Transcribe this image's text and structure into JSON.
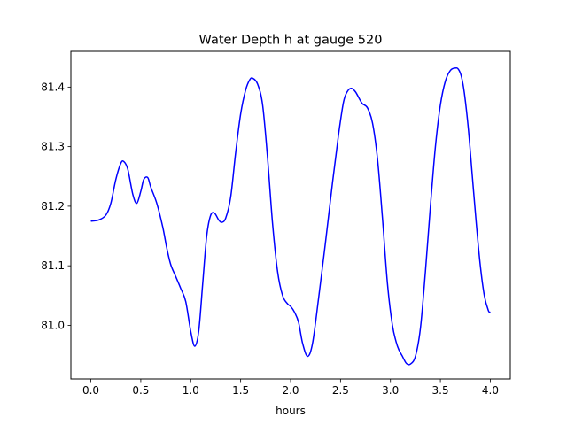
{
  "chart_data": {
    "type": "line",
    "title": "Water Depth h at gauge 520",
    "xlabel": "hours",
    "ylabel": "",
    "xlim": [
      -0.2,
      4.2
    ],
    "ylim": [
      80.91,
      81.46
    ],
    "xticks": [
      0.0,
      0.5,
      1.0,
      1.5,
      2.0,
      2.5,
      3.0,
      3.5,
      4.0
    ],
    "xtick_labels": [
      "0.0",
      "0.5",
      "1.0",
      "1.5",
      "2.0",
      "2.5",
      "3.0",
      "3.5",
      "4.0"
    ],
    "yticks": [
      81.0,
      81.1,
      81.2,
      81.3,
      81.4
    ],
    "ytick_labels": [
      "81.0",
      "81.1",
      "81.2",
      "81.3",
      "81.4"
    ],
    "grid": false,
    "series": [
      {
        "color": "#0000ff",
        "x": [
          0.0,
          0.08,
          0.15,
          0.2,
          0.25,
          0.3,
          0.33,
          0.37,
          0.42,
          0.46,
          0.5,
          0.53,
          0.57,
          0.6,
          0.66,
          0.72,
          0.76,
          0.8,
          0.85,
          0.9,
          0.95,
          1.0,
          1.04,
          1.08,
          1.12,
          1.16,
          1.2,
          1.24,
          1.28,
          1.31,
          1.35,
          1.4,
          1.45,
          1.5,
          1.55,
          1.59,
          1.62,
          1.67,
          1.72,
          1.77,
          1.82,
          1.87,
          1.92,
          1.97,
          2.0,
          2.04,
          2.08,
          2.12,
          2.17,
          2.22,
          2.28,
          2.35,
          2.42,
          2.48,
          2.53,
          2.57,
          2.61,
          2.65,
          2.69,
          2.72,
          2.77,
          2.82,
          2.87,
          2.92,
          2.97,
          3.02,
          3.07,
          3.12,
          3.16,
          3.2,
          3.25,
          3.3,
          3.35,
          3.4,
          3.45,
          3.5,
          3.55,
          3.6,
          3.65,
          3.68,
          3.71,
          3.74,
          3.78,
          3.82,
          3.86,
          3.9,
          3.94,
          3.98,
          4.0
        ],
        "y": [
          81.175,
          81.177,
          81.185,
          81.205,
          81.245,
          81.272,
          81.275,
          81.262,
          81.22,
          81.205,
          81.225,
          81.245,
          81.248,
          81.232,
          81.205,
          81.165,
          81.13,
          81.102,
          81.082,
          81.062,
          81.04,
          80.99,
          80.965,
          80.99,
          81.07,
          81.15,
          81.185,
          81.188,
          81.177,
          81.173,
          81.18,
          81.215,
          81.29,
          81.355,
          81.395,
          81.412,
          81.415,
          81.405,
          81.37,
          81.28,
          81.17,
          81.09,
          81.05,
          81.036,
          81.032,
          81.022,
          81.005,
          80.97,
          80.948,
          80.97,
          81.045,
          81.14,
          81.24,
          81.32,
          81.375,
          81.393,
          81.398,
          81.392,
          81.38,
          81.372,
          81.365,
          81.34,
          81.28,
          81.18,
          81.07,
          81.0,
          80.965,
          80.948,
          80.936,
          80.935,
          80.948,
          80.995,
          81.09,
          81.2,
          81.3,
          81.37,
          81.41,
          81.428,
          81.432,
          81.43,
          81.418,
          81.39,
          81.33,
          81.25,
          81.17,
          81.1,
          81.05,
          81.025,
          81.022
        ]
      }
    ]
  }
}
